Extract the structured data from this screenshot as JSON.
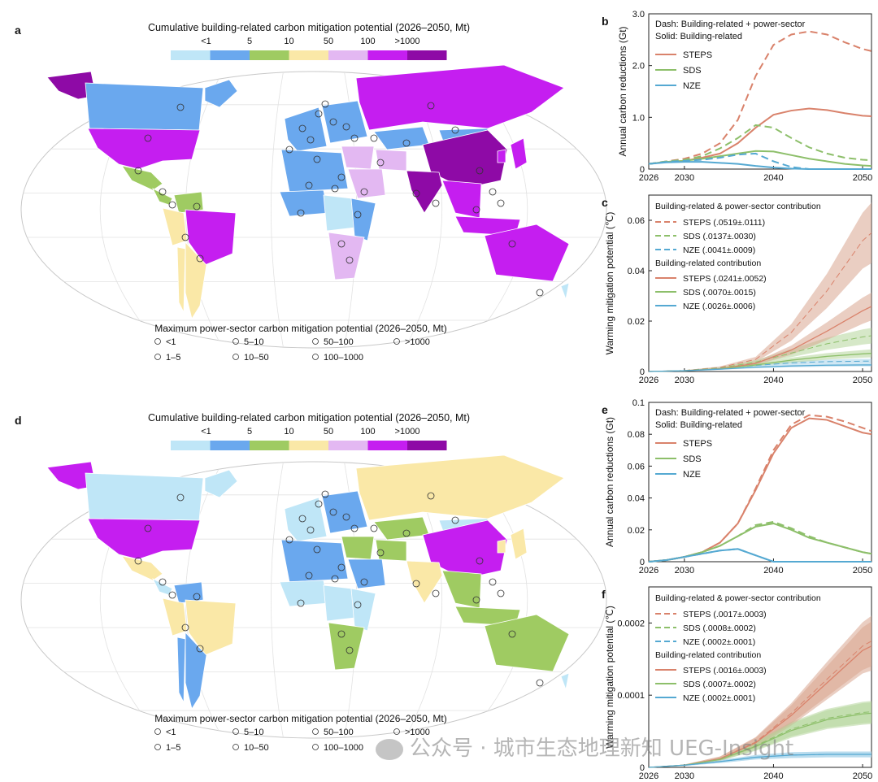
{
  "colors": {
    "bins": [
      "#bfe6f7",
      "#6aa8ee",
      "#9fcb62",
      "#fae8a7",
      "#e3b8f2",
      "#c51ef0",
      "#8e0aa6"
    ],
    "steps": "#d9826b",
    "sds": "#8dbf6a",
    "nze": "#55a9d2",
    "steps_band": "#d9a58f",
    "sds_band": "#b5d69b",
    "nze_band": "#a7d3ea"
  },
  "maps": [
    {
      "panel_label": "a",
      "legend_title": "Cumulative building-related carbon mitigation potential (2026–2050, Mt)",
      "bin_labels": [
        "<1",
        "5",
        "10",
        "50",
        "100",
        ">1000"
      ],
      "circle_title": "Maximum power-sector carbon mitigation potential (2026–2050, Mt)",
      "circle_labels": [
        "<1",
        "5–10",
        "50–100",
        ">1000",
        "1–5",
        "10–50",
        "100–1000"
      ],
      "regions": {
        "north_america": 5,
        "greenland": 1,
        "canada": 1,
        "alaska": 6,
        "mexico": 2,
        "central_america": 2,
        "south_america_north": 3,
        "venezuela": 2,
        "brazil": 5,
        "argentina": 3,
        "chile": 3,
        "europe_west": 1,
        "europe_east": 1,
        "russia": 5,
        "kazakhstan": 1,
        "china": 6,
        "mongolia": 1,
        "india": 6,
        "middle_east": 4,
        "iran": 4,
        "saudi": 4,
        "north_africa": 1,
        "west_africa": 1,
        "east_africa": 1,
        "central_africa": 0,
        "south_africa": 4,
        "southeast_asia": 5,
        "indonesia": 5,
        "japan": 5,
        "korea": 5,
        "australia": 5,
        "new_zealand": 0
      }
    },
    {
      "panel_label": "d",
      "legend_title": "Cumulative building-related carbon mitigation potential (2026–2050, Mt)",
      "bin_labels": [
        "<1",
        "5",
        "10",
        "50",
        "100",
        ">1000"
      ],
      "circle_title": "Maximum power-sector carbon mitigation potential (2026–2050, Mt)",
      "circle_labels": [
        "<1",
        "5–10",
        "50–100",
        ">1000",
        "1–5",
        "10–50",
        "100–1000"
      ],
      "regions": {
        "north_america": 5,
        "greenland": 0,
        "canada": 0,
        "alaska": 5,
        "mexico": 3,
        "central_america": 0,
        "south_america_north": 3,
        "venezuela": 1,
        "brazil": 3,
        "argentina": 1,
        "chile": 1,
        "europe_west": 0,
        "europe_east": 1,
        "russia": 3,
        "kazakhstan": 2,
        "china": 5,
        "mongolia": 0,
        "india": 3,
        "middle_east": 2,
        "iran": 2,
        "saudi": 1,
        "north_africa": 1,
        "west_africa": 0,
        "east_africa": 0,
        "central_africa": 0,
        "south_africa": 2,
        "southeast_asia": 2,
        "indonesia": 2,
        "japan": 3,
        "korea": 3,
        "australia": 2,
        "new_zealand": 0
      }
    }
  ],
  "chart_data": [
    {
      "panel_label": "b",
      "type": "line",
      "title": "",
      "xlabel": "",
      "ylabel": "Annual carbon reductions (Gt)",
      "note_dash": "Dash: Building-related + power-sector",
      "note_solid": "Solid: Building-related",
      "xlim": [
        2026,
        2051
      ],
      "ylim": [
        0,
        3
      ],
      "xticks": [
        2026,
        2030,
        2040,
        2050
      ],
      "xtick_labels": [
        "2026",
        "2030",
        "2040",
        "2050"
      ],
      "yticks": [
        0,
        1,
        2,
        3
      ],
      "ytick_labels": [
        "0",
        "1.0",
        "2.0",
        "3.0"
      ],
      "legend": [
        "STEPS",
        "SDS",
        "NZE"
      ],
      "x": [
        2026,
        2028,
        2030,
        2032,
        2034,
        2036,
        2038,
        2040,
        2042,
        2044,
        2046,
        2048,
        2050,
        2051
      ],
      "series": [
        {
          "name": "STEPS",
          "style": "solid",
          "values": [
            0.1,
            0.14,
            0.16,
            0.22,
            0.3,
            0.5,
            0.8,
            1.05,
            1.13,
            1.17,
            1.14,
            1.08,
            1.03,
            1.02
          ]
        },
        {
          "name": "SDS",
          "style": "solid",
          "values": [
            0.1,
            0.14,
            0.16,
            0.2,
            0.25,
            0.3,
            0.35,
            0.34,
            0.27,
            0.2,
            0.15,
            0.1,
            0.07,
            0.06
          ]
        },
        {
          "name": "NZE",
          "style": "solid",
          "values": [
            0.1,
            0.13,
            0.14,
            0.14,
            0.12,
            0.1,
            0.06,
            0.03,
            0.01,
            0.0,
            0.0,
            0.0,
            0.0,
            0.0
          ]
        },
        {
          "name": "STEPS",
          "style": "dash",
          "values": [
            0.1,
            0.15,
            0.2,
            0.3,
            0.5,
            0.95,
            1.8,
            2.4,
            2.6,
            2.66,
            2.6,
            2.45,
            2.32,
            2.28
          ]
        },
        {
          "name": "SDS",
          "style": "dash",
          "values": [
            0.1,
            0.15,
            0.18,
            0.25,
            0.4,
            0.6,
            0.85,
            0.8,
            0.6,
            0.42,
            0.3,
            0.22,
            0.18,
            0.17
          ]
        },
        {
          "name": "NZE",
          "style": "dash",
          "values": [
            0.1,
            0.14,
            0.16,
            0.18,
            0.22,
            0.28,
            0.3,
            0.15,
            0.04,
            0.0,
            0.0,
            0.0,
            0.0,
            0.0
          ]
        }
      ]
    },
    {
      "panel_label": "c",
      "type": "line",
      "ylabel": "Warming mitigation potential (℃)",
      "legend_head_dash": "Building-related & power-sector contribution",
      "legend_head_solid": "Building-related contribution",
      "legend": [
        "STEPS (.0519±.0111)",
        "SDS (.0137±.0030)",
        "NZE (.0041±.0009)",
        "STEPS (.0241±.0052)",
        "SDS (.0070±.0015)",
        "NZE (.0026±.0006)"
      ],
      "xlim": [
        2026,
        2051
      ],
      "ylim": [
        0,
        0.07
      ],
      "xticks": [
        2026,
        2030,
        2040,
        2050
      ],
      "xtick_labels": [
        "2026",
        "2030",
        "2040",
        "2050"
      ],
      "yticks": [
        0,
        0.02,
        0.04,
        0.06
      ],
      "ytick_labels": [
        "0",
        "0.02",
        "0.04",
        "0.06"
      ],
      "x": [
        2026,
        2030,
        2034,
        2038,
        2042,
        2046,
        2050,
        2051
      ],
      "series": [
        {
          "name": "STEPS",
          "style": "dash",
          "values": [
            0,
            0.0004,
            0.0016,
            0.0048,
            0.0155,
            0.032,
            0.0519,
            0.055
          ],
          "err": [
            0,
            0.0001,
            0.0004,
            0.001,
            0.0033,
            0.0068,
            0.0111,
            0.012
          ]
        },
        {
          "name": "SDS",
          "style": "dash",
          "values": [
            0,
            0.0004,
            0.0014,
            0.0037,
            0.0073,
            0.011,
            0.0137,
            0.0142
          ],
          "err": [
            0,
            0.0001,
            0.0003,
            0.0008,
            0.0016,
            0.0024,
            0.003,
            0.0031
          ]
        },
        {
          "name": "NZE",
          "style": "dash",
          "values": [
            0,
            0.0003,
            0.0012,
            0.0024,
            0.0034,
            0.0039,
            0.0041,
            0.0041
          ],
          "err": [
            0,
            0.0001,
            0.0002,
            0.0005,
            0.0007,
            0.0008,
            0.0009,
            0.0009
          ]
        },
        {
          "name": "STEPS",
          "style": "solid",
          "values": [
            0,
            0.0003,
            0.0011,
            0.0032,
            0.0085,
            0.016,
            0.0241,
            0.0258
          ],
          "err": [
            0,
            0.0001,
            0.0002,
            0.0007,
            0.0018,
            0.0035,
            0.0052,
            0.0055
          ]
        },
        {
          "name": "SDS",
          "style": "solid",
          "values": [
            0,
            0.0003,
            0.001,
            0.0026,
            0.0045,
            0.006,
            0.007,
            0.0072
          ],
          "err": [
            0,
            0.0001,
            0.0002,
            0.0005,
            0.001,
            0.0013,
            0.0015,
            0.0016
          ]
        },
        {
          "name": "NZE",
          "style": "solid",
          "values": [
            0,
            0.0003,
            0.0009,
            0.0017,
            0.0022,
            0.0025,
            0.0026,
            0.0026
          ],
          "err": [
            0,
            0.0001,
            0.0002,
            0.0004,
            0.0005,
            0.0006,
            0.0006,
            0.0006
          ]
        }
      ]
    },
    {
      "panel_label": "e",
      "type": "line",
      "ylabel": "Annual carbon reductions (Gt)",
      "note_dash": "Dash: Building-related + power-sector",
      "note_solid": "Solid: Building-related",
      "xlim": [
        2026,
        2051
      ],
      "ylim": [
        0,
        0.1
      ],
      "xticks": [
        2026,
        2030,
        2040,
        2050
      ],
      "xtick_labels": [
        "2026",
        "2030",
        "2040",
        "2050"
      ],
      "yticks": [
        0,
        0.02,
        0.04,
        0.06,
        0.08,
        0.1
      ],
      "ytick_labels": [
        "0",
        "0.02",
        "0.04",
        "0.06",
        "0.08",
        "0.1"
      ],
      "legend": [
        "STEPS",
        "SDS",
        "NZE"
      ],
      "x": [
        2026,
        2028,
        2030,
        2032,
        2034,
        2036,
        2038,
        2040,
        2042,
        2044,
        2046,
        2048,
        2050,
        2051
      ],
      "series": [
        {
          "name": "STEPS",
          "style": "solid",
          "values": [
            0.0,
            0.001,
            0.003,
            0.006,
            0.012,
            0.024,
            0.045,
            0.068,
            0.084,
            0.09,
            0.089,
            0.085,
            0.081,
            0.08
          ]
        },
        {
          "name": "SDS",
          "style": "solid",
          "values": [
            0.0,
            0.001,
            0.003,
            0.006,
            0.01,
            0.016,
            0.022,
            0.024,
            0.02,
            0.015,
            0.012,
            0.009,
            0.006,
            0.005
          ]
        },
        {
          "name": "NZE",
          "style": "solid",
          "values": [
            0.0,
            0.001,
            0.003,
            0.005,
            0.007,
            0.008,
            0.004,
            0.0,
            0.0,
            0.0,
            0.0,
            0.0,
            0.0,
            0.0
          ]
        },
        {
          "name": "STEPS",
          "style": "dash",
          "values": [
            0.0,
            0.001,
            0.003,
            0.006,
            0.012,
            0.024,
            0.046,
            0.07,
            0.086,
            0.092,
            0.091,
            0.088,
            0.084,
            0.082
          ]
        },
        {
          "name": "SDS",
          "style": "dash",
          "values": [
            0.0,
            0.001,
            0.003,
            0.006,
            0.01,
            0.016,
            0.023,
            0.025,
            0.021,
            0.016,
            0.012,
            0.009,
            0.006,
            0.005
          ]
        },
        {
          "name": "NZE",
          "style": "dash",
          "values": [
            0.0,
            0.001,
            0.003,
            0.005,
            0.007,
            0.008,
            0.004,
            0.0,
            0.0,
            0.0,
            0.0,
            0.0,
            0.0,
            0.0
          ]
        }
      ]
    },
    {
      "panel_label": "f",
      "type": "line",
      "ylabel": "Warming mitigation potential (℃)",
      "legend_head_dash": "Building-related & power-sector contribution",
      "legend_head_solid": "Building-related contribution",
      "legend": [
        "STEPS (.0017±.0003)",
        "SDS (.0008±.0002)",
        "NZE (.0002±.0001)",
        "STEPS (.0016±.0003)",
        "SDS (.0007±.0002)",
        "NZE (.0002±.0001)"
      ],
      "xlim": [
        2026,
        2051
      ],
      "ylim": [
        0,
        0.00025
      ],
      "xticks": [
        2026,
        2030,
        2040,
        2050
      ],
      "xtick_labels": [
        "2026",
        "2030",
        "2040",
        "2050"
      ],
      "yticks": [
        0,
        0.0001,
        0.0002
      ],
      "ytick_labels": [
        "0",
        "0.0001",
        "0.0002"
      ],
      "x": [
        2026,
        2030,
        2034,
        2038,
        2042,
        2046,
        2050,
        2051
      ],
      "series": [
        {
          "name": "STEPS",
          "style": "dash",
          "values": [
            0,
            3e-06,
            1.2e-05,
            3.5e-05,
            7.5e-05,
            0.000122,
            0.000168,
            0.000175
          ],
          "err": [
            0,
            1e-06,
            3e-06,
            7e-06,
            1.4e-05,
            2.4e-05,
            3.3e-05,
            3.5e-05
          ]
        },
        {
          "name": "SDS",
          "style": "dash",
          "values": [
            0,
            3e-06,
            1.1e-05,
            3e-05,
            5.3e-05,
            6.8e-05,
            7.6e-05,
            7.7e-05
          ],
          "err": [
            0,
            1e-06,
            2e-06,
            6e-06,
            1e-05,
            1.3e-05,
            1.5e-05,
            1.5e-05
          ]
        },
        {
          "name": "NZE",
          "style": "dash",
          "values": [
            0,
            3e-06,
            8e-06,
            1.4e-05,
            1.7e-05,
            1.8e-05,
            1.8e-05,
            1.8e-05
          ],
          "err": [
            0,
            1e-06,
            2e-06,
            3e-06,
            4e-06,
            4e-06,
            4e-06,
            4e-06
          ]
        },
        {
          "name": "STEPS",
          "style": "solid",
          "values": [
            0,
            3e-06,
            1.2e-05,
            3.4e-05,
            7.2e-05,
            0.000117,
            0.000162,
            0.000168
          ],
          "err": [
            0,
            1e-06,
            3e-06,
            7e-06,
            1.4e-05,
            2.3e-05,
            3.2e-05,
            3.4e-05
          ]
        },
        {
          "name": "SDS",
          "style": "solid",
          "values": [
            0,
            3e-06,
            1.1e-05,
            2.9e-05,
            5.1e-05,
            6.6e-05,
            7.4e-05,
            7.5e-05
          ],
          "err": [
            0,
            1e-06,
            2e-06,
            6e-06,
            1e-05,
            1.3e-05,
            1.5e-05,
            1.5e-05
          ]
        },
        {
          "name": "NZE",
          "style": "solid",
          "values": [
            0,
            3e-06,
            8e-06,
            1.4e-05,
            1.7e-05,
            1.8e-05,
            1.8e-05,
            1.8e-05
          ],
          "err": [
            0,
            1e-06,
            2e-06,
            3e-06,
            4e-06,
            4e-06,
            4e-06,
            4e-06
          ]
        }
      ]
    }
  ],
  "watermark": "公众号 · 城市生态地理新知 UEG-Insight"
}
